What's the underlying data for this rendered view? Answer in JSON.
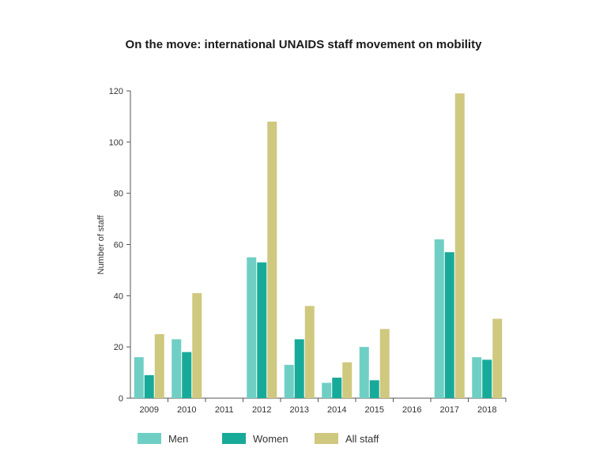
{
  "chart_data": {
    "type": "bar",
    "title": "On the move: international UNAIDS staff movement on mobility",
    "xlabel": "",
    "ylabel": "Number of staff",
    "categories": [
      "2009",
      "2010",
      "2011",
      "2012",
      "2013",
      "2014",
      "2015",
      "2016",
      "2017",
      "2018"
    ],
    "ylim": [
      0,
      120
    ],
    "yticks": [
      0,
      20,
      40,
      60,
      80,
      100,
      120
    ],
    "grid": false,
    "legend_position": "bottom",
    "series": [
      {
        "name": "Men",
        "color": "#6fcfc4",
        "values": [
          16,
          23,
          0,
          55,
          13,
          6,
          20,
          0,
          62,
          16
        ]
      },
      {
        "name": "Women",
        "color": "#18aa98",
        "values": [
          9,
          18,
          0,
          53,
          23,
          8,
          7,
          0,
          57,
          15
        ]
      },
      {
        "name": "All staff",
        "color": "#cfc87f",
        "values": [
          25,
          41,
          0,
          108,
          36,
          14,
          27,
          0,
          119,
          31
        ]
      }
    ]
  }
}
